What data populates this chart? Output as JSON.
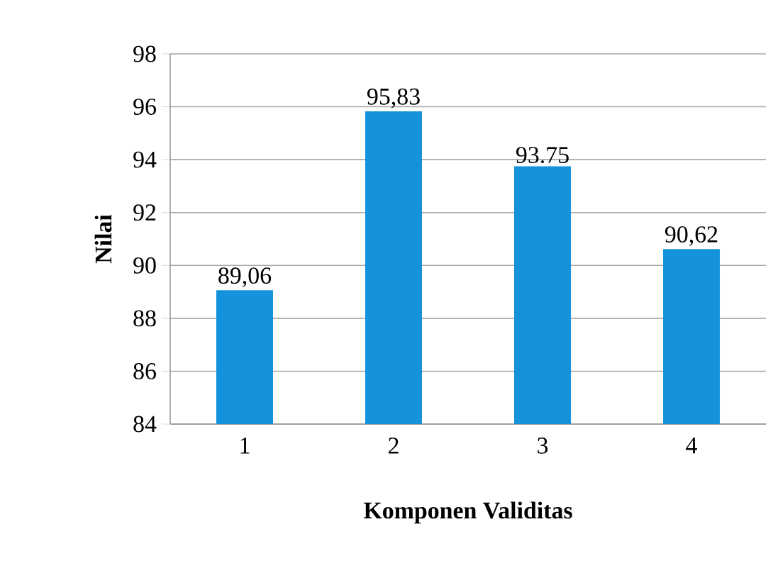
{
  "chart_data": {
    "type": "bar",
    "xlabel": "Komponen Validitas",
    "ylabel": "Nilai",
    "categories": [
      "1",
      "2",
      "3",
      "4"
    ],
    "values": [
      89.06,
      95.83,
      93.75,
      90.62
    ],
    "value_labels": [
      "89,06",
      "95,83",
      "93.75",
      "90,62"
    ],
    "color": "#1493dc",
    "ylim": [
      84,
      98
    ],
    "yticks": [
      84,
      86,
      88,
      90,
      92,
      94,
      96,
      98
    ],
    "grid": "y"
  }
}
